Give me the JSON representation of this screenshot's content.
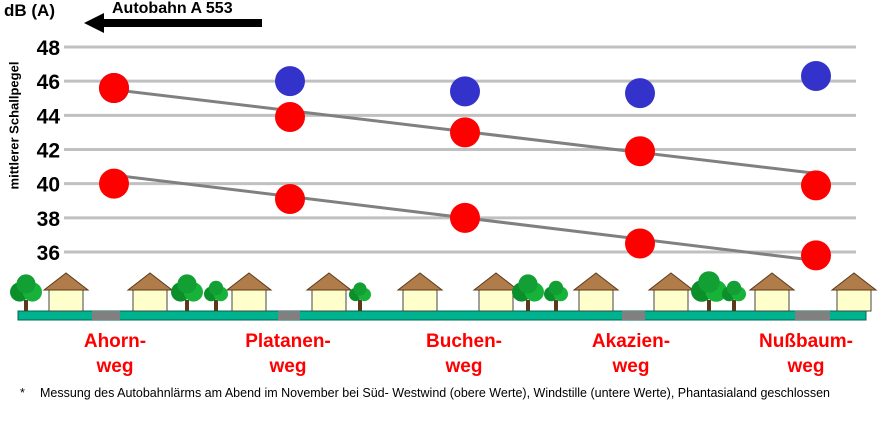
{
  "header": {
    "unit": "dB (A)",
    "road": "Autobahn A 553",
    "ylabel": "mittlerer Schallpegel"
  },
  "streets": [
    {
      "line1": "Ahorn-",
      "line2": "weg"
    },
    {
      "line1": "Platanen-",
      "line2": "weg"
    },
    {
      "line1": "Buchen-",
      "line2": "weg"
    },
    {
      "line1": "Akazien-",
      "line2": "weg"
    },
    {
      "line1": "Nußbaum-",
      "line2": "weg"
    }
  ],
  "footnote": {
    "star": "*",
    "text": "Messung des Autobahnlärms am Abend im November bei Süd- Westwind (obere Werte), Windstille (untere Werte), Phantasialand geschlossen"
  },
  "colors": {
    "blue": "#3333cc",
    "red": "#ff0000",
    "trend": "#808080",
    "grid": "#c0c0c0",
    "ground": "#00b38f"
  },
  "chart_data": {
    "type": "scatter",
    "categories": [
      "Ahornweg",
      "Platanenweg",
      "Buchenweg",
      "Akazienweg",
      "Nußbaumweg"
    ],
    "ylim": [
      36,
      48
    ],
    "yticks": [
      36,
      38,
      40,
      42,
      44,
      46,
      48
    ],
    "series": [
      {
        "values": [
          45.6,
          46.0,
          45.4,
          45.3,
          46.3
        ],
        "color": "#3333cc"
      },
      {
        "values": [
          45.6,
          43.9,
          43.0,
          41.9,
          39.9
        ],
        "color": "#ff0000"
      },
      {
        "values": [
          40.0,
          39.1,
          38.0,
          36.5,
          35.8
        ],
        "color": "#ff0000"
      }
    ],
    "trendlines": [
      {
        "start": 45.5,
        "end": 40.6
      },
      {
        "start": 40.5,
        "end": 35.5
      }
    ],
    "grid": true
  }
}
